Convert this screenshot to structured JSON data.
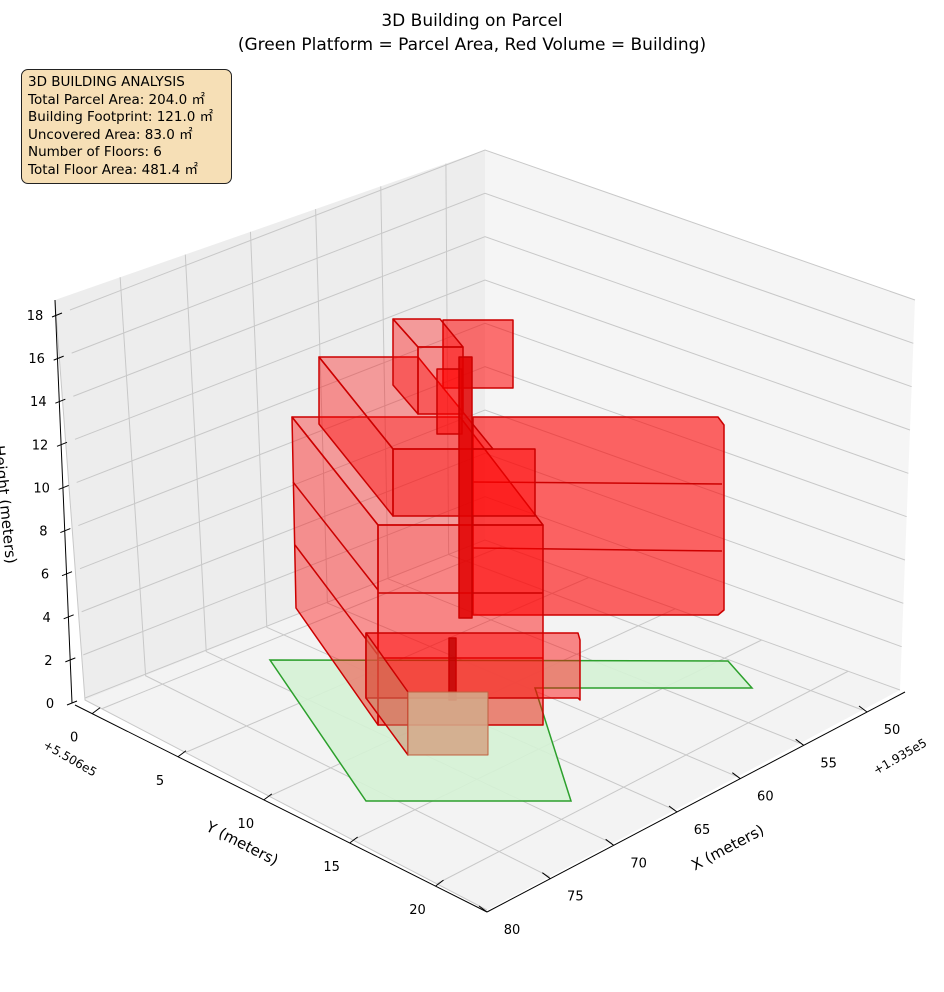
{
  "chart_data": {
    "type": "3d-bar",
    "title": "3D Building on Parcel",
    "subtitle": "(Green Platform = Parcel Area, Red Volume = Building)",
    "xlabel": "X (meters)",
    "ylabel": "Y (meters)",
    "zlabel": "Height (meters)",
    "x_offset": "+1.935e5",
    "y_offset": "+5.506e5",
    "x_ticks": [
      "50",
      "55",
      "60",
      "65",
      "70",
      "75",
      "80"
    ],
    "y_ticks": [
      "0",
      "5",
      "10",
      "15",
      "20"
    ],
    "z_ticks": [
      "0",
      "2",
      "4",
      "6",
      "8",
      "10",
      "12",
      "14",
      "16",
      "18"
    ],
    "xlim": [
      47,
      80
    ],
    "ylim": [
      -1,
      23
    ],
    "zlim": [
      0,
      18
    ],
    "series": [
      {
        "name": "Parcel Area",
        "color": "#2ca02c",
        "fill": "#d5f2d5"
      },
      {
        "name": "Building",
        "color": "#dd0000",
        "fill": "#ff0000"
      }
    ],
    "annotation": {
      "title": "3D BUILDING ANALYSIS",
      "lines": [
        "Total Parcel Area: 204.0 ㎡",
        "Building Footprint: 121.0 ㎡",
        "Uncovered Area: 83.0 ㎡",
        "Number of Floors: 6",
        "Total Floor Area: 481.4 ㎡"
      ]
    },
    "stats": {
      "parcel_area": 204.0,
      "footprint": 121.0,
      "uncovered": 83.0,
      "floors": 6,
      "total_floor_area": 481.4
    }
  }
}
